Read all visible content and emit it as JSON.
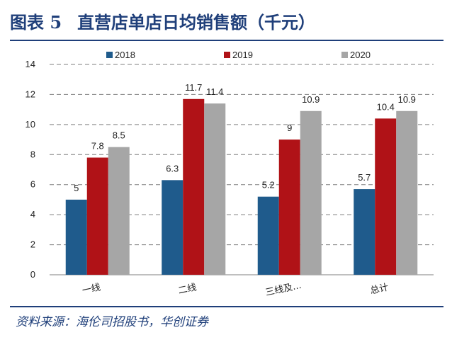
{
  "title_parts": [
    "图表 5",
    "直营店单店日均销售额（千元）"
  ],
  "source": "资料来源：海伦司招股书，华创证券",
  "chart_data": {
    "type": "bar",
    "categories": [
      "一线",
      "二线",
      "三线及...",
      "总计"
    ],
    "series": [
      {
        "name": "2018",
        "values": [
          5,
          6.3,
          5.2,
          5.7
        ],
        "color": "#1f5b8c",
        "labels": [
          "5",
          "6.3",
          "5.2",
          "5.7"
        ]
      },
      {
        "name": "2019",
        "values": [
          7.8,
          11.7,
          9,
          10.4
        ],
        "color": "#b01217",
        "labels": [
          "7.8",
          "11.7",
          "9",
          "10.4"
        ]
      },
      {
        "name": "2020",
        "values": [
          8.5,
          11.4,
          10.9,
          10.9
        ],
        "color": "#a6a6a6",
        "labels": [
          "8.5",
          "11.4",
          "10.9",
          "10.9"
        ]
      }
    ],
    "ylim": [
      0,
      14
    ],
    "yticks": [
      "0",
      "2",
      "4",
      "6",
      "8",
      "10",
      "12",
      "14"
    ],
    "grid": true,
    "legend": "top"
  }
}
